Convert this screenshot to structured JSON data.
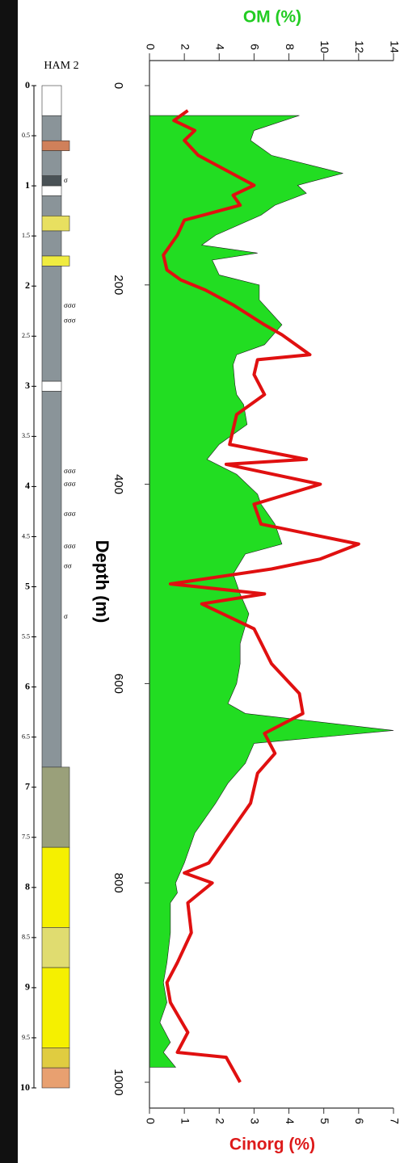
{
  "chart_data": [
    {
      "type": "column",
      "title": "HAM 2",
      "ylim": [
        0,
        10
      ],
      "yticks": [
        0,
        0.5,
        1,
        1.5,
        2,
        2.5,
        3,
        3.5,
        4,
        4.5,
        5,
        5.5,
        6,
        6.5,
        7,
        7.5,
        8,
        8.5,
        9,
        9.5,
        10
      ],
      "layers": [
        {
          "top": 0,
          "bottom": 0.3,
          "color": "#ffffff"
        },
        {
          "top": 0.3,
          "bottom": 0.55,
          "color": "#8a9499"
        },
        {
          "top": 0.55,
          "bottom": 0.65,
          "color": "#d0805a"
        },
        {
          "top": 0.65,
          "bottom": 0.9,
          "color": "#8a9499"
        },
        {
          "top": 0.9,
          "bottom": 1.0,
          "color": "#4a5256"
        },
        {
          "top": 1.0,
          "bottom": 1.1,
          "color": "#ffffff"
        },
        {
          "top": 1.1,
          "bottom": 1.3,
          "color": "#8a9499"
        },
        {
          "top": 1.3,
          "bottom": 1.45,
          "color": "#e8e060"
        },
        {
          "top": 1.45,
          "bottom": 1.7,
          "color": "#8a9499"
        },
        {
          "top": 1.7,
          "bottom": 1.8,
          "color": "#f0ec40"
        },
        {
          "top": 1.8,
          "bottom": 2.95,
          "color": "#8a9499"
        },
        {
          "top": 2.95,
          "bottom": 3.05,
          "color": "#ffffff"
        },
        {
          "top": 3.05,
          "bottom": 6.8,
          "color": "#8a9499"
        },
        {
          "top": 6.8,
          "bottom": 7.6,
          "color": "#9aa07a"
        },
        {
          "top": 7.6,
          "bottom": 8.4,
          "color": "#f5f000"
        },
        {
          "top": 8.4,
          "bottom": 8.8,
          "color": "#e0dc70"
        },
        {
          "top": 8.8,
          "bottom": 9.6,
          "color": "#f5f000"
        },
        {
          "top": 9.6,
          "bottom": 9.8,
          "color": "#e0cc40"
        },
        {
          "top": 9.8,
          "bottom": 10,
          "color": "#e8a070"
        }
      ],
      "annotations": [
        {
          "text": "σ",
          "depth": 0.95
        },
        {
          "text": "σσσ",
          "depth": 2.2
        },
        {
          "text": "σσσ",
          "depth": 2.35
        },
        {
          "text": "σσσ",
          "depth": 3.85
        },
        {
          "text": "σσσ",
          "depth": 3.98
        },
        {
          "text": "σσσ",
          "depth": 4.28
        },
        {
          "text": "σσσ",
          "depth": 4.6
        },
        {
          "text": "σσ",
          "depth": 4.8
        },
        {
          "text": "σ",
          "depth": 5.3
        }
      ]
    },
    {
      "type": "depth-profile",
      "y_label": "Depth (m)",
      "ylim": [
        0,
        1000
      ],
      "yticks": [
        0,
        200,
        400,
        600,
        800,
        1000
      ],
      "x_label": "Cinorg (%)",
      "xlim": [
        0,
        7
      ],
      "xticks": [
        0,
        1,
        2,
        3,
        4,
        5,
        6,
        7
      ],
      "x2_label": "OM (%)",
      "x2lim": [
        0,
        14
      ],
      "x2ticks": [
        0,
        2,
        4,
        6,
        8,
        10,
        12,
        14
      ],
      "series": [
        {
          "type": "area",
          "axis": "x2",
          "color": "#22dd22",
          "depth": [
            30,
            45,
            55,
            70,
            88,
            100,
            108,
            120,
            130,
            150,
            160,
            168,
            175,
            190,
            200,
            215,
            240,
            260,
            270,
            280,
            300,
            310,
            320,
            340,
            360,
            375,
            390,
            410,
            420,
            440,
            460,
            470,
            490,
            510,
            530,
            560,
            580,
            600,
            620,
            630,
            647,
            660,
            680,
            700,
            720,
            750,
            780,
            800,
            810,
            820,
            850,
            880,
            900,
            920,
            940,
            960,
            970,
            985
          ],
          "values": [
            8.6,
            6.0,
            5.8,
            7.0,
            11.1,
            8.5,
            9.0,
            7.2,
            6.4,
            3.8,
            3.0,
            6.2,
            3.6,
            4.0,
            6.3,
            6.3,
            7.6,
            6.6,
            5.0,
            4.8,
            4.9,
            5.0,
            5.4,
            5.6,
            4.0,
            3.3,
            5.0,
            6.2,
            6.4,
            7.2,
            7.6,
            5.5,
            4.8,
            5.2,
            5.7,
            5.2,
            5.2,
            5.0,
            4.5,
            5.5,
            14.0,
            6.0,
            5.5,
            4.5,
            3.8,
            2.6,
            2.0,
            1.5,
            1.6,
            1.2,
            1.2,
            1.0,
            0.8,
            1.0,
            0.6,
            1.2,
            0.8,
            1.5
          ]
        },
        {
          "type": "line",
          "axis": "x",
          "color": "#e01010",
          "depth": [
            25,
            35,
            45,
            55,
            70,
            85,
            100,
            110,
            120,
            135,
            150,
            170,
            185,
            195,
            205,
            220,
            240,
            250,
            270,
            275,
            290,
            310,
            330,
            360,
            375,
            380,
            400,
            420,
            440,
            460,
            475,
            485,
            500,
            510,
            520,
            545,
            580,
            610,
            630,
            650,
            670,
            690,
            720,
            750,
            780,
            790,
            800,
            820,
            850,
            880,
            900,
            920,
            950,
            970,
            975,
            1000
          ],
          "values": [
            1.1,
            0.7,
            1.3,
            1.0,
            1.4,
            2.2,
            3.0,
            2.4,
            2.6,
            1.0,
            0.8,
            0.4,
            0.5,
            0.9,
            1.6,
            2.4,
            3.3,
            3.8,
            4.6,
            3.1,
            3.0,
            3.3,
            2.5,
            2.3,
            4.5,
            2.2,
            4.9,
            3.0,
            3.2,
            6.0,
            4.9,
            3.5,
            0.6,
            3.3,
            1.5,
            3.0,
            3.5,
            4.3,
            4.4,
            3.3,
            3.6,
            3.1,
            2.9,
            2.3,
            1.7,
            1.0,
            1.8,
            1.1,
            1.2,
            0.8,
            0.5,
            0.6,
            1.1,
            0.8,
            2.2,
            2.6
          ]
        }
      ]
    }
  ]
}
